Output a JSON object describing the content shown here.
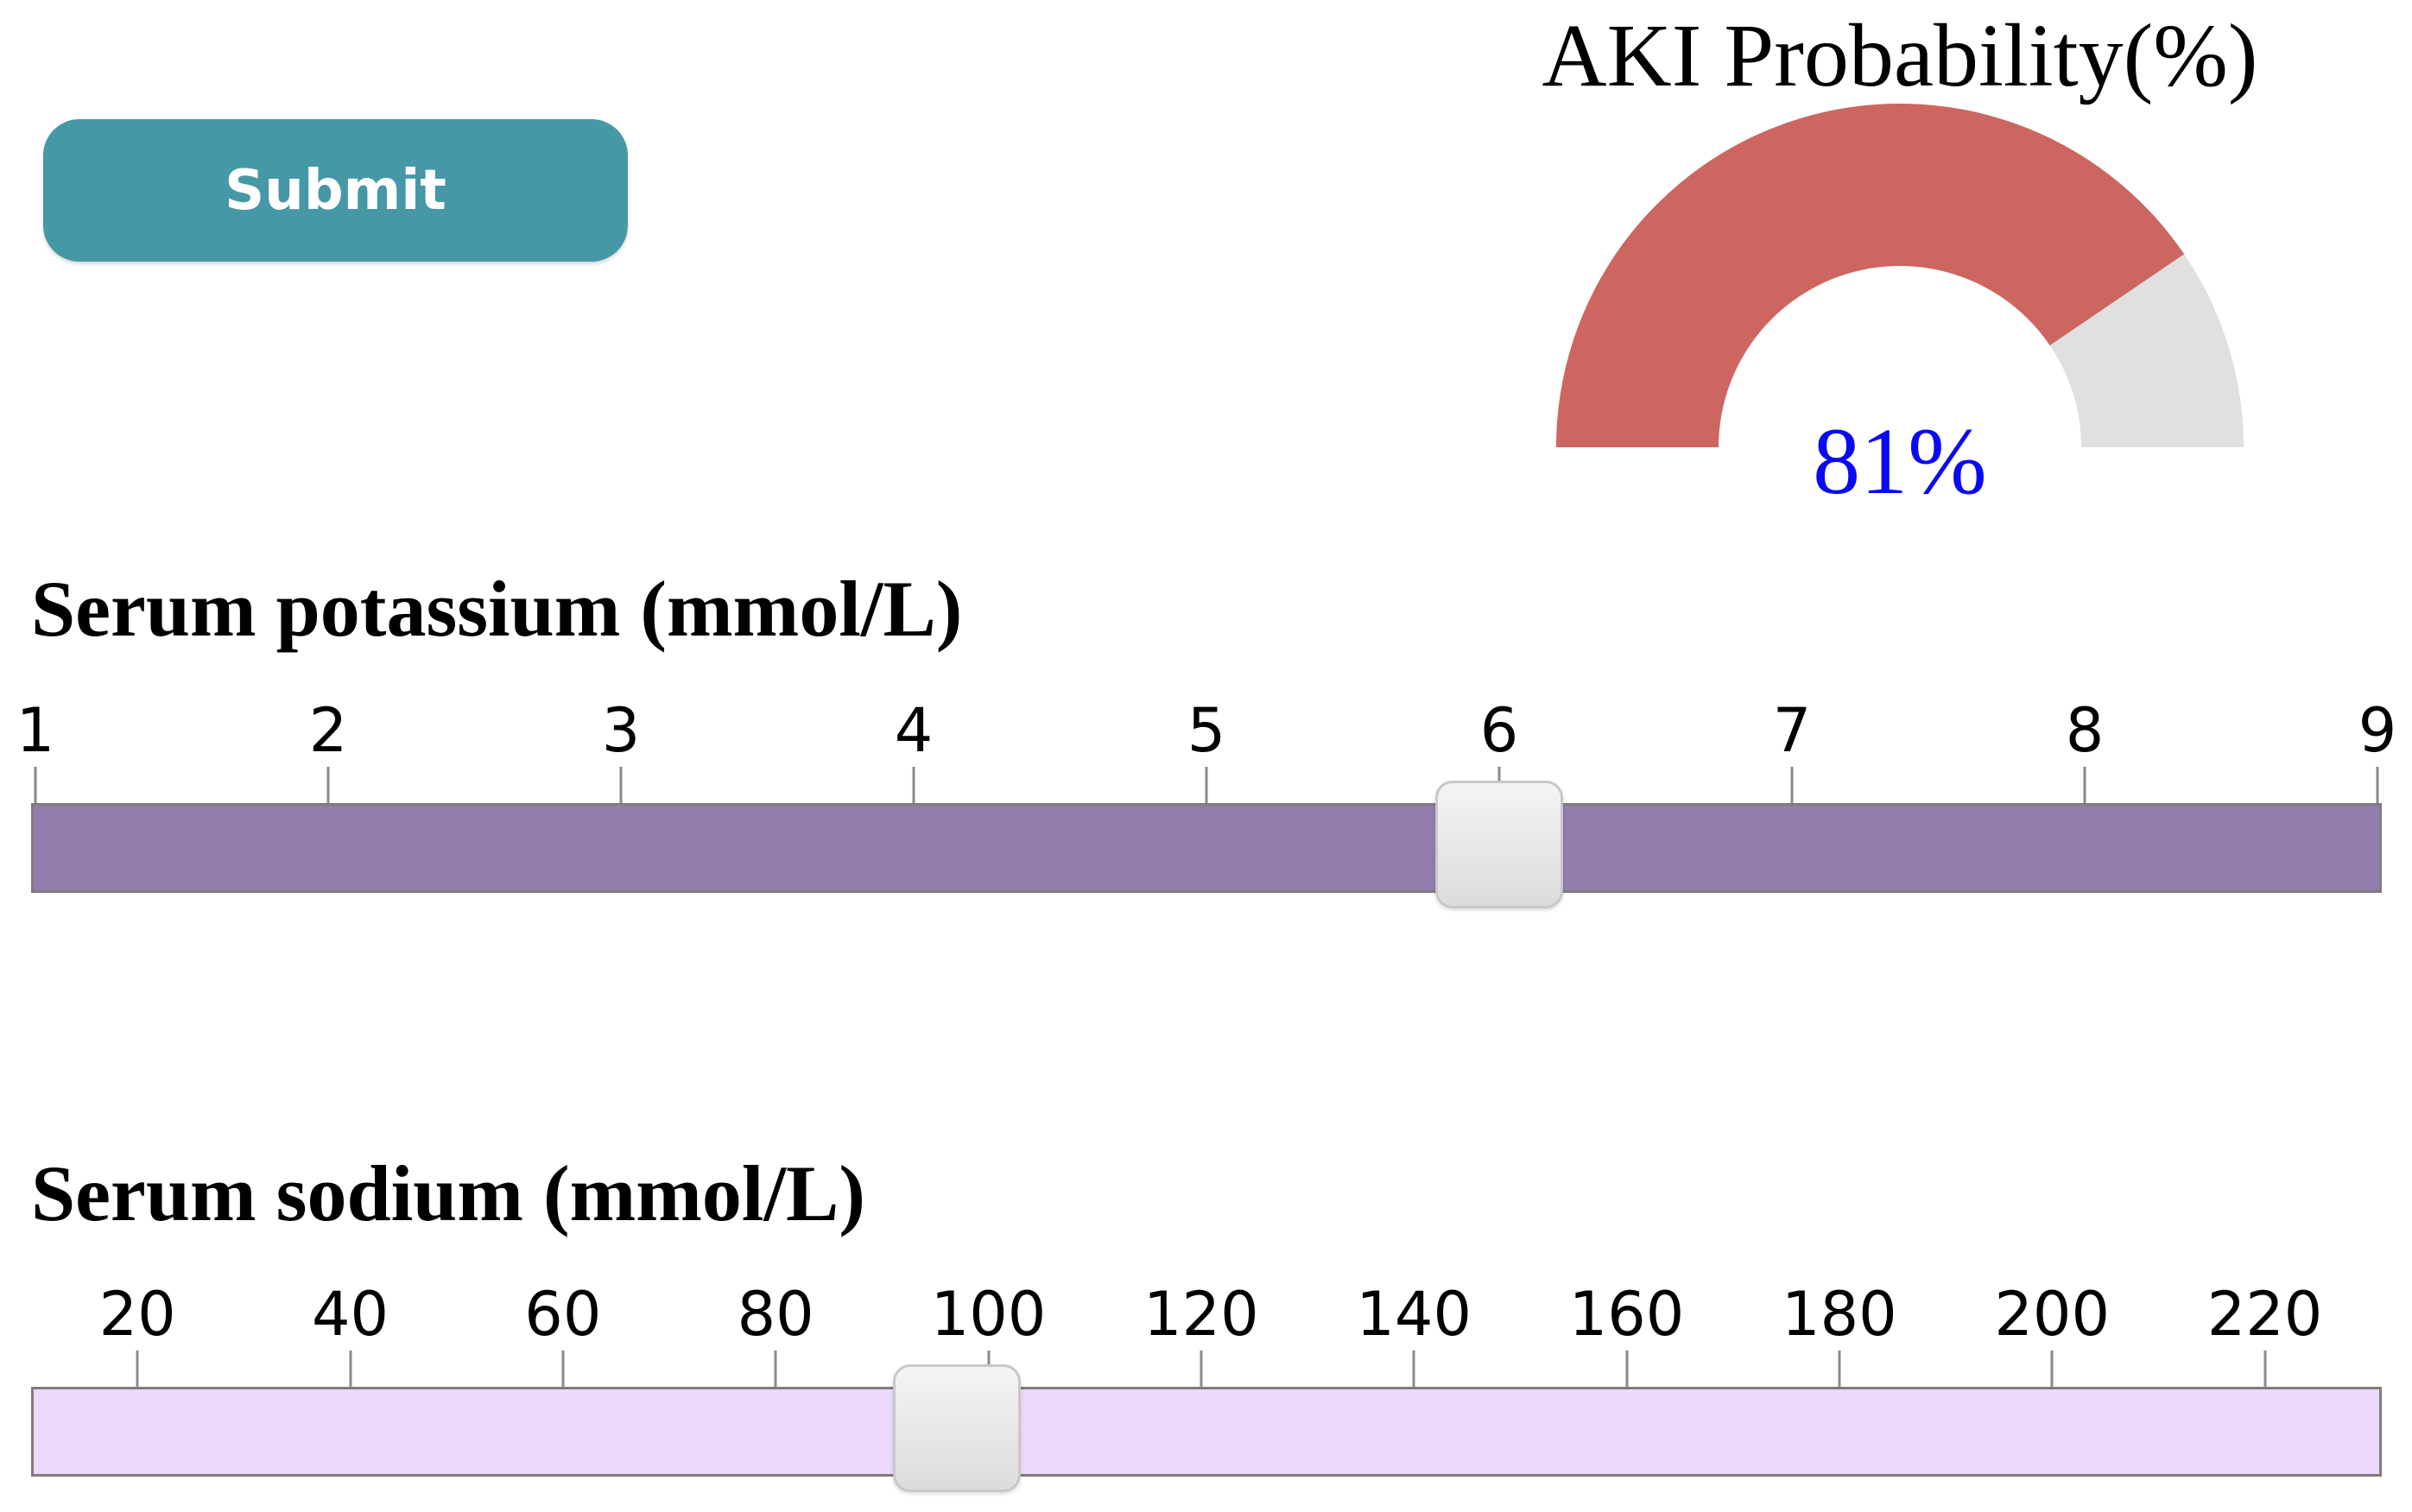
{
  "submit": {
    "label": "Submit"
  },
  "gauge": {
    "title": "AKI Probability(%)",
    "value": 81,
    "value_text": "81%",
    "fill_color": "#cd6660",
    "rest_color": "#e0e0e0",
    "value_color": "#0a0af0"
  },
  "potassium": {
    "label": "Serum potassium (mmol/L)",
    "ticks": [
      "1",
      "2",
      "3",
      "4",
      "5",
      "6",
      "7",
      "8",
      "9"
    ],
    "min": 1,
    "max": 9,
    "value": 6,
    "track_color": "#937dac"
  },
  "sodium": {
    "label": "Serum sodium (mmol/L)",
    "ticks": [
      "20",
      "40",
      "60",
      "80",
      "100",
      "120",
      "140",
      "160",
      "180",
      "200",
      "220"
    ],
    "min": 10,
    "max": 231,
    "value": 97,
    "track_color": "#ecd9fc"
  }
}
